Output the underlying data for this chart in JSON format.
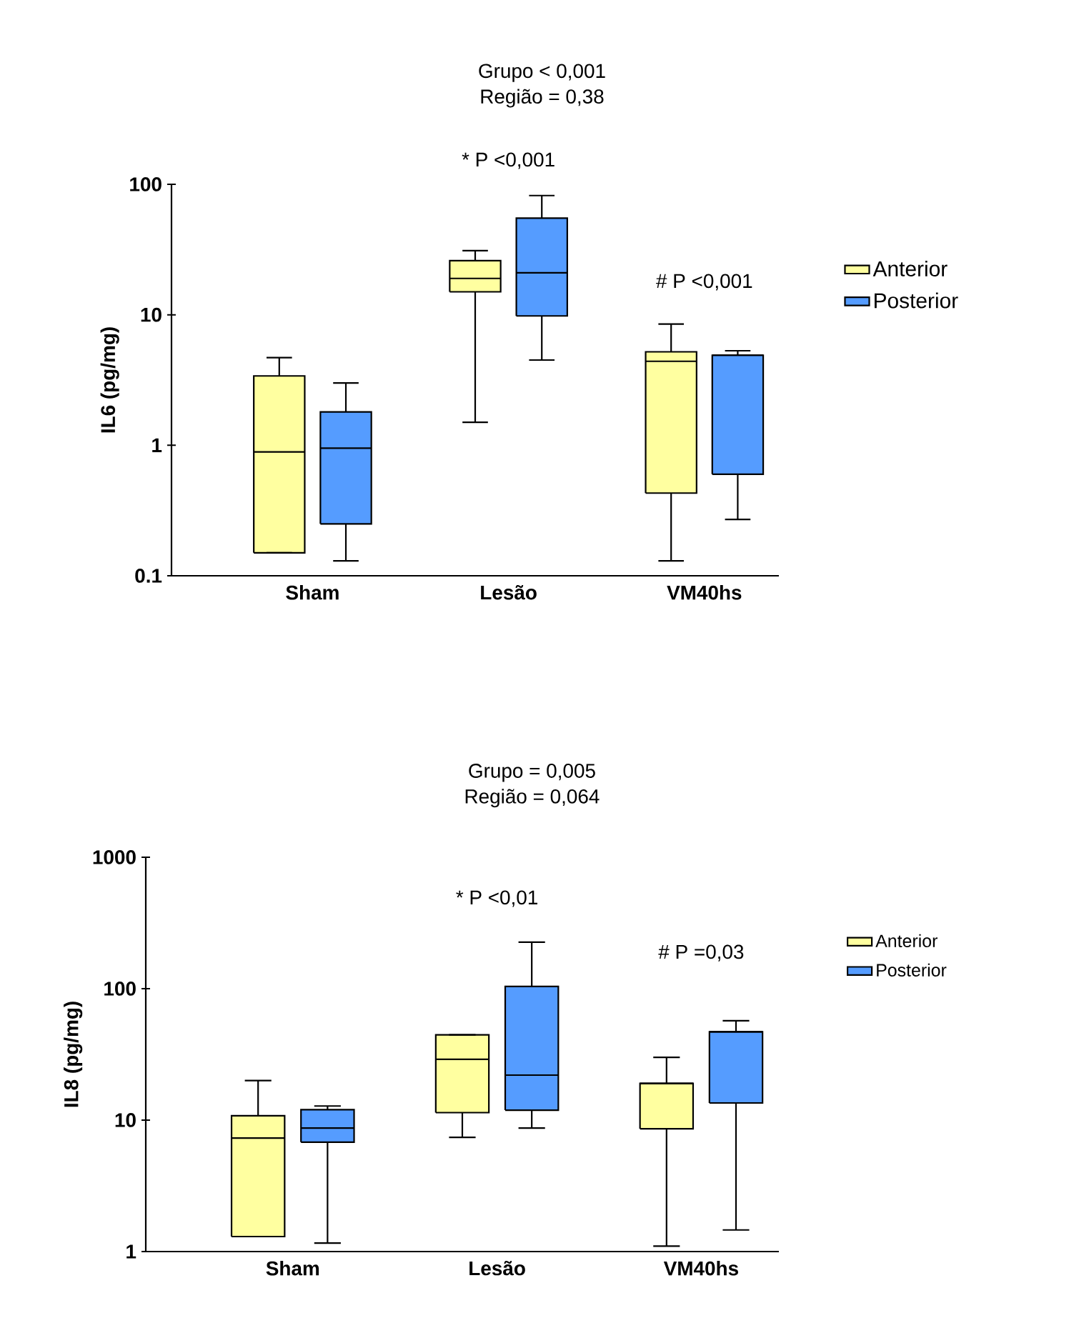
{
  "chart_data": [
    {
      "type": "box",
      "title": "Grupo < 0,001",
      "subtitle": "Região = 0,38",
      "ylabel": "IL6 (pg/mg)",
      "categories": [
        "Sham",
        "Lesão",
        "VM40hs"
      ],
      "log": true,
      "ylim": [
        0.1,
        100
      ],
      "yticks": [
        0.1,
        1,
        10,
        100
      ],
      "legend": "right",
      "annotations": [
        "* P <0,001",
        "# P <0,001"
      ],
      "series": [
        {
          "name": "Anterior",
          "color": "#ffffa0",
          "boxes": [
            {
              "low": 0.15,
              "q1": 0.15,
              "median": 0.89,
              "q3": 3.4,
              "high": 4.7
            },
            {
              "low": 1.5,
              "q1": 15,
              "median": 19,
              "q3": 26,
              "high": 31
            },
            {
              "low": 0.13,
              "q1": 0.43,
              "median": 4.4,
              "q3": 5.2,
              "high": 8.5
            }
          ]
        },
        {
          "name": "Posterior",
          "color": "#559cff",
          "boxes": [
            {
              "low": 0.13,
              "q1": 0.25,
              "median": 0.95,
              "q3": 1.8,
              "high": 3.0
            },
            {
              "low": 4.5,
              "q1": 9.8,
              "median": 21,
              "q3": 55,
              "high": 82
            },
            {
              "low": 0.27,
              "q1": 0.6,
              "median": 4.9,
              "q3": 4.9,
              "high": 5.3
            }
          ]
        }
      ]
    },
    {
      "type": "box",
      "title": "Grupo = 0,005",
      "subtitle": "Região = 0,064",
      "ylabel": "IL8 (pg/mg)",
      "categories": [
        "Sham",
        "Lesão",
        "VM40hs"
      ],
      "log": true,
      "ylim": [
        1,
        1000
      ],
      "yticks": [
        1,
        10,
        100,
        1000
      ],
      "legend": "right",
      "annotations": [
        "* P <0,01",
        "# P =0,03"
      ],
      "series": [
        {
          "name": "Anterior",
          "color": "#ffffa0",
          "boxes": [
            {
              "low": 1.3,
              "q1": 1.3,
              "median": 7.3,
              "q3": 10.8,
              "high": 20
            },
            {
              "low": 7.4,
              "q1": 11.4,
              "median": 29,
              "q3": 44.5,
              "high": 44.5
            },
            {
              "low": 1.1,
              "q1": 8.6,
              "median": 19,
              "q3": 19,
              "high": 30
            }
          ]
        },
        {
          "name": "Posterior",
          "color": "#559cff",
          "boxes": [
            {
              "low": 1.16,
              "q1": 6.8,
              "median": 8.7,
              "q3": 12,
              "high": 12.8
            },
            {
              "low": 8.7,
              "q1": 11.9,
              "median": 22,
              "q3": 104,
              "high": 226
            },
            {
              "low": 1.46,
              "q1": 13.5,
              "median": 47,
              "q3": 47,
              "high": 57
            }
          ]
        }
      ]
    }
  ]
}
